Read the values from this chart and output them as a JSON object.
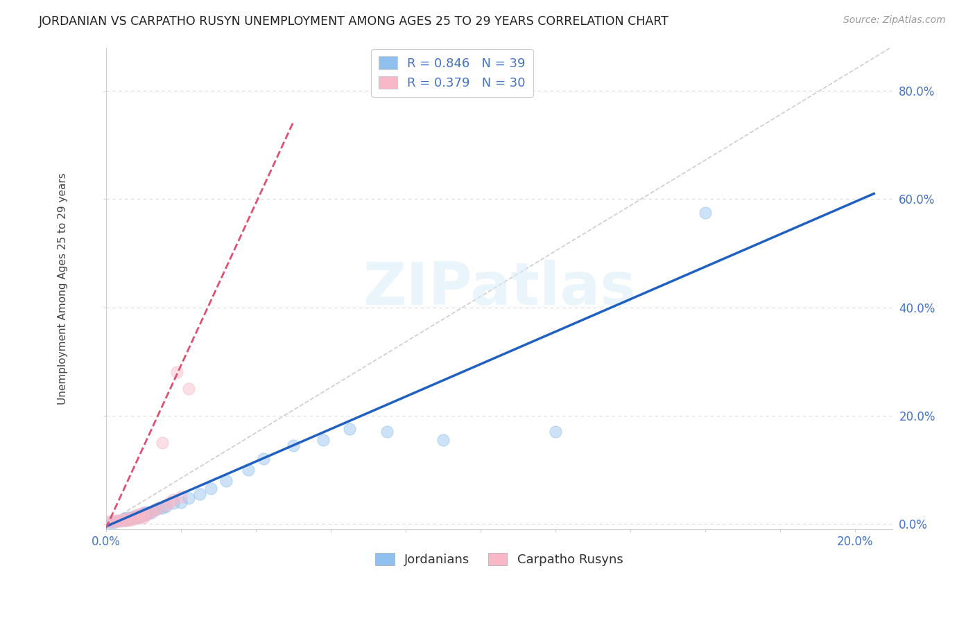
{
  "title": "JORDANIAN VS CARPATHO RUSYN UNEMPLOYMENT AMONG AGES 25 TO 29 YEARS CORRELATION CHART",
  "source": "Source: ZipAtlas.com",
  "ylabel": "Unemployment Among Ages 25 to 29 years",
  "xlim": [
    0.0,
    0.21
  ],
  "ylim": [
    -0.01,
    0.88
  ],
  "ytick_positions": [
    0.0,
    0.2,
    0.4,
    0.6,
    0.8
  ],
  "jordanians_R": 0.846,
  "jordanians_N": 39,
  "carpatho_R": 0.379,
  "carpatho_N": 30,
  "blue_color": "#90C0EE",
  "pink_color": "#F8B8C8",
  "blue_line_color": "#2060C0",
  "pink_line_color": "#E05070",
  "ref_line_color": "#C8C8C8",
  "background_color": "#FFFFFF",
  "grid_color": "#D8D8D8",
  "title_color": "#222222",
  "tick_label_color": "#4472C4",
  "legend_color": "#4472C4",
  "jordanians_x": [
    0.001,
    0.002,
    0.003,
    0.004,
    0.005,
    0.005,
    0.006,
    0.006,
    0.007,
    0.007,
    0.008,
    0.008,
    0.009,
    0.009,
    0.01,
    0.01,
    0.01,
    0.011,
    0.011,
    0.012,
    0.013,
    0.014,
    0.015,
    0.016,
    0.018,
    0.02,
    0.022,
    0.025,
    0.028,
    0.032,
    0.038,
    0.042,
    0.05,
    0.058,
    0.065,
    0.075,
    0.09,
    0.12,
    0.16
  ],
  "jordanians_y": [
    0.002,
    0.003,
    0.005,
    0.006,
    0.007,
    0.01,
    0.008,
    0.012,
    0.01,
    0.013,
    0.012,
    0.015,
    0.013,
    0.016,
    0.015,
    0.018,
    0.02,
    0.018,
    0.022,
    0.02,
    0.025,
    0.028,
    0.03,
    0.032,
    0.038,
    0.04,
    0.048,
    0.055,
    0.065,
    0.08,
    0.1,
    0.12,
    0.145,
    0.155,
    0.175,
    0.17,
    0.155,
    0.17,
    0.575
  ],
  "carpatho_x": [
    0.001,
    0.002,
    0.002,
    0.003,
    0.004,
    0.004,
    0.005,
    0.005,
    0.006,
    0.006,
    0.007,
    0.007,
    0.008,
    0.008,
    0.009,
    0.009,
    0.01,
    0.01,
    0.01,
    0.011,
    0.012,
    0.013,
    0.014,
    0.015,
    0.016,
    0.017,
    0.018,
    0.019,
    0.02,
    0.022
  ],
  "carpatho_y": [
    0.005,
    0.004,
    0.005,
    0.006,
    0.005,
    0.007,
    0.006,
    0.008,
    0.007,
    0.01,
    0.008,
    0.012,
    0.01,
    0.015,
    0.012,
    0.018,
    0.012,
    0.016,
    0.02,
    0.018,
    0.022,
    0.025,
    0.03,
    0.15,
    0.035,
    0.04,
    0.045,
    0.28,
    0.05,
    0.25
  ],
  "watermark_text": "ZIPatlas",
  "dot_size": 150,
  "dot_alpha": 0.45,
  "blue_line_intercept": -0.005,
  "blue_line_slope": 3.0,
  "pink_line_intercept": -0.008,
  "pink_line_slope": 15.0,
  "ref_slope": 4.2
}
